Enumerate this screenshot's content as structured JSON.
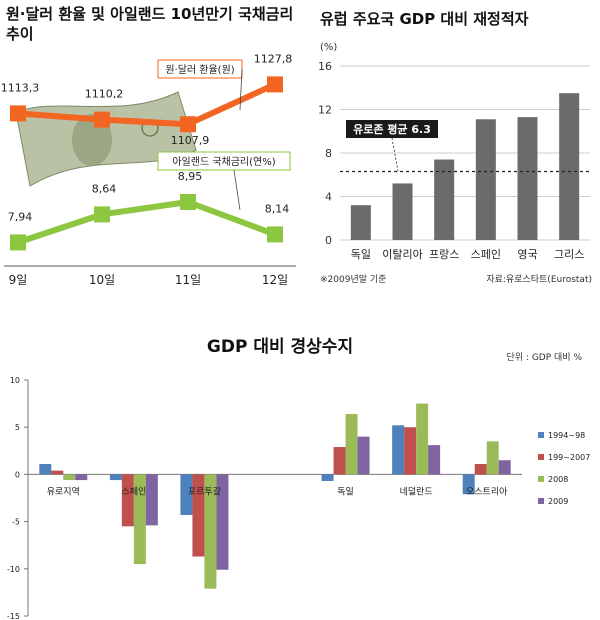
{
  "chart_data": [
    {
      "type": "line",
      "title": "원·달러 환율 및 아일랜드 10년만기 국채금리 추이",
      "categories": [
        "9일",
        "10일",
        "11일",
        "12일"
      ],
      "series": [
        {
          "name": "원·달러 환율(원)",
          "values": [
            1113.3,
            1110.2,
            1107.9,
            1127.8
          ],
          "labels": [
            "1113,3",
            "1110,2",
            "1107,9",
            "1127,8"
          ],
          "color": "#f26522"
        },
        {
          "name": "아일랜드 국채금리(연%)",
          "values": [
            7.94,
            8.64,
            8.95,
            8.14
          ],
          "labels": [
            "7,94",
            "8,64",
            "8,95",
            "8,14"
          ],
          "color": "#8dc63f"
        }
      ]
    },
    {
      "type": "bar",
      "title": "유럽 주요국 GDP 대비 재정적자",
      "ylabel": "(%)",
      "categories": [
        "독일",
        "이탈리아",
        "프랑스",
        "스페인",
        "영국",
        "그리스"
      ],
      "values": [
        3.2,
        5.2,
        7.4,
        11.1,
        11.3,
        13.5
      ],
      "ylim": [
        0,
        16
      ],
      "yticks": [
        "0",
        "4",
        "8",
        "12",
        "16"
      ],
      "reference_line": {
        "value": 6.3,
        "label": "유로존 평균 6.3"
      },
      "footnote": "※2009년말 기준",
      "source": "자료:유로스타트(Eurostat)",
      "bar_color": "#6b6b6b"
    },
    {
      "type": "bar",
      "title": "GDP 대비 경상수지",
      "unit": "단위 : GDP 대비 %",
      "categories": [
        "유로지역",
        "스페인",
        "포르투갈",
        "",
        "독일",
        "네덜란드",
        "오스트리아"
      ],
      "series": [
        {
          "name": "1994~98",
          "values": [
            1.1,
            -0.6,
            -4.3,
            null,
            -0.7,
            5.2,
            -2.1
          ],
          "color": "#4f81bd"
        },
        {
          "name": "199~2007",
          "values": [
            0.4,
            -5.5,
            -8.7,
            null,
            2.9,
            5.0,
            1.1
          ],
          "color": "#c0504d"
        },
        {
          "name": "2008",
          "values": [
            -0.6,
            -9.5,
            -12.1,
            null,
            6.4,
            7.5,
            3.5
          ],
          "color": "#9bbb59"
        },
        {
          "name": "2009",
          "values": [
            -0.6,
            -5.4,
            -10.1,
            null,
            4.0,
            3.1,
            1.5
          ],
          "color": "#8064a2"
        }
      ],
      "ylim": [
        -15,
        10
      ],
      "yticks": [
        "10",
        "5",
        "0",
        "-5",
        "-10",
        "-15"
      ],
      "legend": "right",
      "grid": false
    }
  ]
}
